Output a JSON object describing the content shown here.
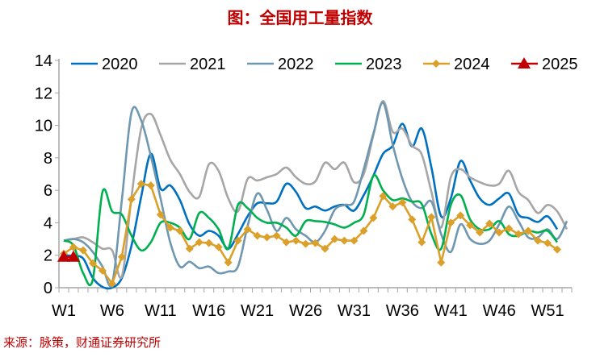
{
  "title": "图：全国用工量指数",
  "source": "来源：脉策，财通证券研究所",
  "chart_data": {
    "type": "line",
    "title": "图：全国用工量指数",
    "xlabel": "",
    "ylabel": "",
    "ylim": [
      0,
      14
    ],
    "yticks": [
      "0",
      "2",
      "4",
      "6",
      "8",
      "10",
      "12",
      "14"
    ],
    "xtick_labels": [
      "W1",
      "W6",
      "W11",
      "W16",
      "W21",
      "W26",
      "W31",
      "W36",
      "W41",
      "W46",
      "W51"
    ],
    "xtick_weeks": [
      1,
      6,
      11,
      16,
      21,
      26,
      31,
      36,
      41,
      46,
      51
    ],
    "num_weeks": 53,
    "legend_position": "top",
    "grid": false,
    "series": [
      {
        "name": "2020",
        "color": "#0070c0",
        "smooth": true,
        "marker": "none",
        "values": [
          2.0,
          1.95,
          1.8,
          0.6,
          0.05,
          0,
          0.6,
          2.6,
          5.6,
          8.25,
          6.1,
          6.3,
          5.4,
          3.9,
          3.2,
          3.5,
          3.2,
          2.4,
          3.3,
          4.4,
          5.2,
          5.2,
          5.3,
          6.4,
          5.9,
          4.9,
          5.0,
          4.75,
          5.0,
          5.1,
          4.75,
          5.7,
          6.9,
          8.25,
          8.75,
          10.1,
          8.7,
          9.8,
          7.4,
          4.4,
          5.5,
          7.8,
          6.6,
          5.5,
          5.1,
          5.5,
          5.8,
          4.5,
          4.3,
          4.05,
          4.4,
          3.6,
          null
        ]
      },
      {
        "name": "2021",
        "color": "#a6a6a6",
        "smooth": true,
        "marker": "none",
        "values": [
          2.9,
          3.0,
          3.1,
          2.8,
          2.4,
          2.3,
          0.7,
          5.6,
          9.8,
          10.7,
          9.4,
          7.9,
          7.0,
          5.9,
          5.6,
          7.6,
          7.2,
          5.5,
          4.7,
          6.7,
          6.6,
          6.8,
          7.0,
          7.4,
          6.8,
          6.4,
          6.55,
          7.7,
          7.3,
          7.7,
          6.5,
          7.0,
          9.4,
          11.5,
          9.6,
          9.8,
          8.75,
          8.2,
          5.9,
          3.7,
          6.8,
          7.3,
          6.8,
          6.5,
          6.3,
          6.4,
          7.2,
          5.9,
          5.4,
          4.6,
          5.1,
          4.7,
          3.6
        ]
      },
      {
        "name": "2022",
        "color": "#6f97b0",
        "smooth": true,
        "marker": "none",
        "values": [
          2.9,
          3.0,
          2.8,
          2.2,
          1.3,
          0.3,
          5.4,
          10.8,
          10.3,
          8.1,
          5.5,
          2.8,
          1.3,
          1.6,
          1.2,
          1.3,
          0.9,
          1.0,
          1.3,
          3.8,
          5.8,
          4.8,
          3.5,
          4.3,
          3.6,
          3.2,
          2.8,
          3.5,
          4.8,
          5.1,
          5.3,
          7.3,
          9.5,
          11.4,
          8.8,
          6.7,
          5.3,
          4.9,
          5.3,
          3.3,
          2.2,
          3.9,
          3.0,
          2.7,
          2.9,
          3.9,
          5.0,
          4.1,
          3.1,
          3.1,
          3.6,
          3.0,
          4.1
        ]
      },
      {
        "name": "2023",
        "color": "#00b050",
        "smooth": true,
        "marker": "none",
        "values": [
          2.9,
          2.6,
          0.9,
          0.5,
          5.9,
          4.7,
          4.5,
          3.2,
          2.3,
          2.8,
          4.0,
          4.0,
          3.7,
          3.0,
          4.6,
          4.3,
          3.6,
          2.4,
          5.1,
          4.9,
          4.3,
          4.0,
          4.0,
          3.7,
          3.2,
          4.1,
          4.1,
          4.05,
          3.9,
          3.7,
          4.0,
          4.5,
          6.9,
          6.0,
          5.4,
          5.5,
          5.3,
          5.15,
          3.3,
          2.4,
          5.1,
          5.7,
          4.2,
          3.6,
          3.6,
          4.1,
          3.3,
          3.2,
          3.5,
          3.4,
          3.5,
          2.8,
          null
        ]
      },
      {
        "name": "2024",
        "color": "#daa02a",
        "smooth": false,
        "marker": "diamond",
        "values": [
          2.1,
          2.5,
          2.3,
          1.5,
          1.05,
          0.25,
          1.9,
          5.45,
          6.4,
          6.3,
          4.5,
          3.7,
          3.5,
          2.4,
          2.8,
          2.75,
          2.5,
          1.55,
          2.9,
          3.6,
          3.2,
          3.1,
          3.2,
          2.8,
          2.9,
          2.7,
          2.75,
          2.4,
          3.0,
          2.9,
          2.9,
          3.5,
          4.3,
          5.65,
          5.0,
          5.25,
          4.2,
          2.8,
          4.35,
          1.55,
          4.0,
          4.45,
          3.85,
          3.4,
          3.95,
          3.4,
          3.65,
          3.3,
          3.5,
          2.9,
          2.75,
          2.35,
          null
        ]
      },
      {
        "name": "2025",
        "color": "#c00000",
        "smooth": false,
        "marker": "triangle",
        "values": [
          1.9,
          1.9
        ]
      }
    ]
  }
}
